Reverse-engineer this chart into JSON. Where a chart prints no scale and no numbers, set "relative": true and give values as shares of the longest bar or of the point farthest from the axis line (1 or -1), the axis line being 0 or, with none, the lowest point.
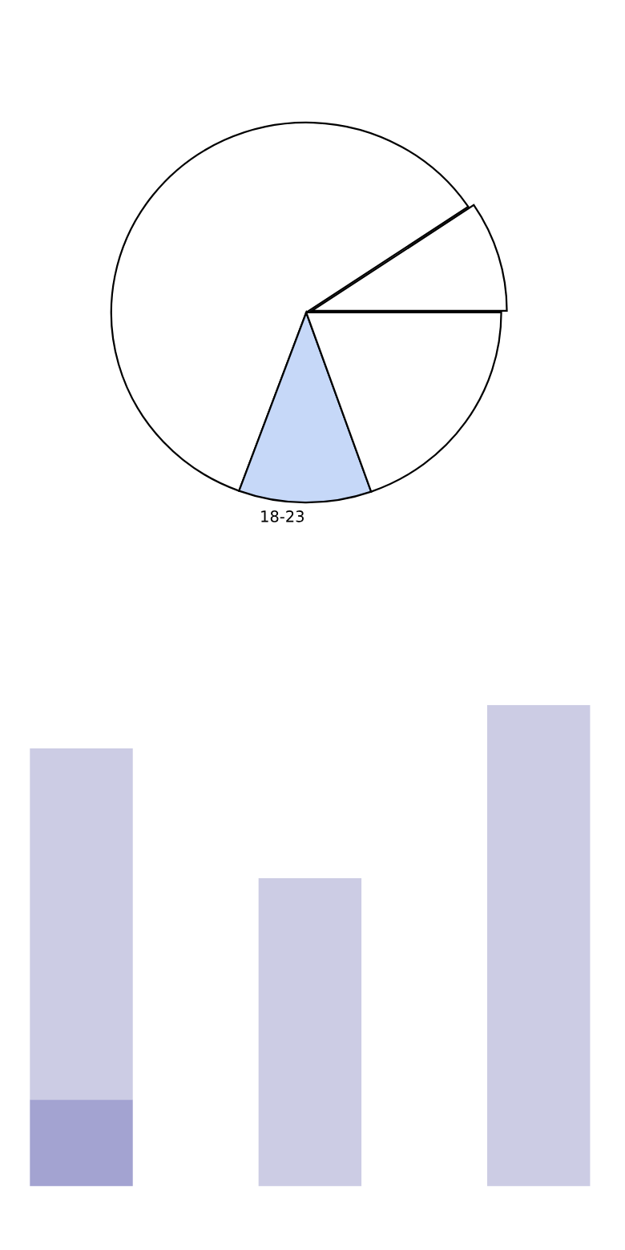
{
  "chart_data": [
    {
      "type": "pie",
      "categories": [
        null,
        null,
        "18-23",
        null
      ],
      "values": [
        9.4,
        60,
        11,
        19.6
      ],
      "colors": [
        "#ffffff",
        "#ffffff",
        "#c6d8f8",
        "#ffffff"
      ]
    },
    {
      "type": "bar",
      "relative": true,
      "stacked": true,
      "categories": [
        null,
        null,
        null
      ],
      "series": [
        {
          "color": "#a3a3d1",
          "values": [
            0.18,
            0,
            0
          ]
        },
        {
          "color": "#ccccE4",
          "values": [
            0.73,
            0.64,
            1.0
          ]
        }
      ]
    }
  ]
}
